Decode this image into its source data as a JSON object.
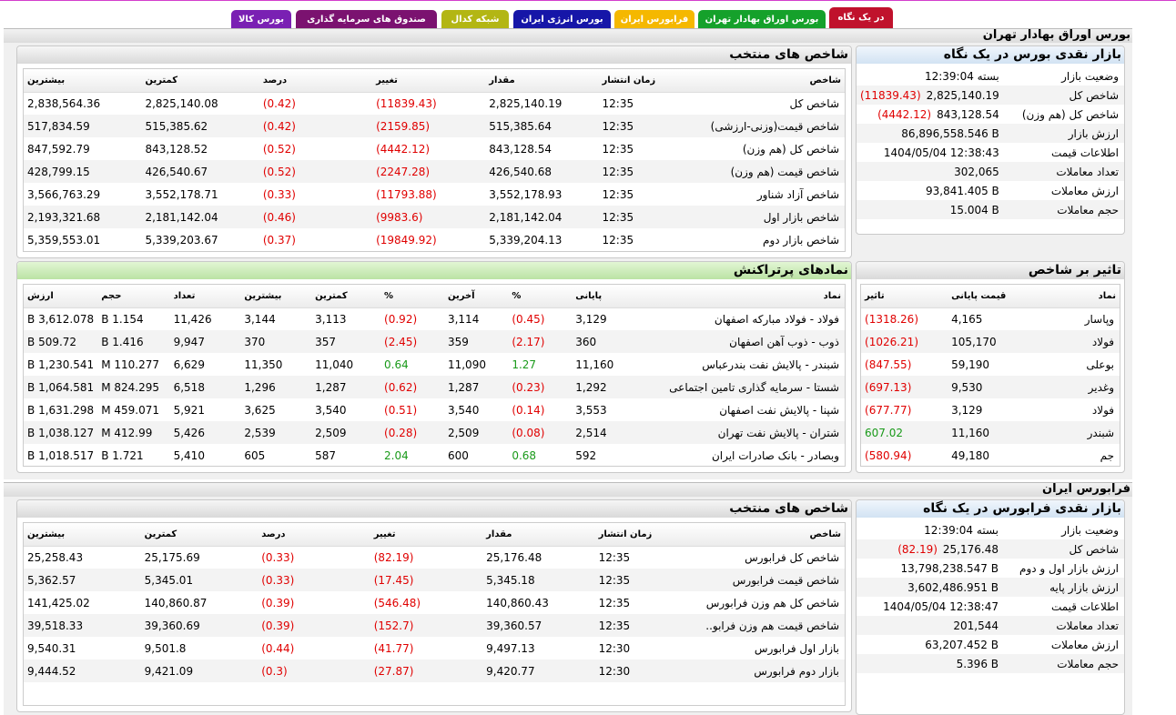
{
  "tabs": [
    {
      "label": "در یک نگاه",
      "color": "#c0122c",
      "active": true
    },
    {
      "label": "بورس اوراق بهادار تهران",
      "color": "#15a12b"
    },
    {
      "label": "فرابورس ایران",
      "color": "#f5b800"
    },
    {
      "label": "بورس انرژی ایران",
      "color": "#1616a8"
    },
    {
      "label": "شبکه کدال",
      "color": "#b3b614"
    },
    {
      "label": "صندوق های سرمایه گذاری",
      "color": "#7b1270"
    },
    {
      "label": "بورس کالا",
      "color": "#7a20b3"
    }
  ],
  "tse": {
    "title": "بورس اوراق بهادار تهران",
    "glance": {
      "title": "بازار نقدی بورس در یک نگاه",
      "rows": [
        {
          "label": "وضعیت بازار",
          "value": "بسته 12:39:04",
          "change": ""
        },
        {
          "label": "شاخص کل",
          "value": "2,825,140.19",
          "change": "(11839.43)"
        },
        {
          "label": "شاخص کل (هم وزن)",
          "value": "843,128.54",
          "change": "(4442.12)"
        },
        {
          "label": "ارزش بازار",
          "value": "86,896,558.546 B",
          "change": ""
        },
        {
          "label": "اطلاعات قیمت",
          "value": "1404/05/04 12:38:43",
          "change": ""
        },
        {
          "label": "تعداد معاملات",
          "value": "302,065",
          "change": ""
        },
        {
          "label": "ارزش معاملات",
          "value": "93,841.405 B",
          "change": ""
        },
        {
          "label": "حجم معاملات",
          "value": "15.004 B",
          "change": ""
        }
      ]
    },
    "indices": {
      "title": "شاخص های منتخب",
      "headers": [
        "شاخص",
        "زمان انتشار",
        "مقدار",
        "تغییر",
        "درصد",
        "کمترین",
        "بیشترین"
      ],
      "rows": [
        [
          "شاخص کل",
          "12:35",
          "2,825,140.19",
          "(11839.43)",
          "(0.42)",
          "2,825,140.08",
          "2,838,564.36"
        ],
        [
          "شاخص قیمت(وزنی-ارزشی)",
          "12:35",
          "515,385.64",
          "(2159.85)",
          "(0.42)",
          "515,385.62",
          "517,834.59"
        ],
        [
          "شاخص کل (هم وزن)",
          "12:35",
          "843,128.54",
          "(4442.12)",
          "(0.52)",
          "843,128.52",
          "847,592.79"
        ],
        [
          "شاخص قیمت (هم وزن)",
          "12:35",
          "426,540.68",
          "(2247.28)",
          "(0.52)",
          "426,540.67",
          "428,799.15"
        ],
        [
          "شاخص آزاد شناور",
          "12:35",
          "3,552,178.93",
          "(11793.88)",
          "(0.33)",
          "3,552,178.71",
          "3,566,763.29"
        ],
        [
          "شاخص بازار اول",
          "12:35",
          "2,181,142.04",
          "(9983.6)",
          "(0.46)",
          "2,181,142.04",
          "2,193,321.68"
        ],
        [
          "شاخص بازار دوم",
          "12:35",
          "5,339,204.13",
          "(19849.92)",
          "(0.37)",
          "5,339,203.67",
          "5,359,553.01"
        ]
      ]
    },
    "influence": {
      "title": "تاثیر بر شاخص",
      "headers": [
        "نماد",
        "قیمت پایانی",
        "تاثیر"
      ],
      "rows": [
        [
          "وپاسار",
          "4,165",
          "(1318.26)"
        ],
        [
          "فولاد",
          "105,170",
          "(1026.21)"
        ],
        [
          "بوعلی",
          "59,190",
          "(847.55)"
        ],
        [
          "وغدیر",
          "9,530",
          "(697.13)"
        ],
        [
          "فولاد",
          "3,129",
          "(677.77)"
        ],
        [
          "شبندر",
          "11,160",
          "607.02"
        ],
        [
          "جم",
          "49,180",
          "(580.94)"
        ]
      ]
    },
    "active": {
      "title": "نمادهای پرتراکنش",
      "headers": [
        "نماد",
        "پایانی",
        "%",
        "آخرین",
        "%",
        "کمترین",
        "بیشترین",
        "تعداد",
        "حجم",
        "ارزش"
      ],
      "rows": [
        [
          "فولاد - فولاد مبارکه اصفهان",
          "3,129",
          "(0.45)",
          "3,114",
          "(0.92)",
          "3,113",
          "3,144",
          "11,426",
          "1.154 B",
          "3,612.078 B"
        ],
        [
          "ذوب - ذوب آهن اصفهان",
          "360",
          "(2.17)",
          "359",
          "(2.45)",
          "357",
          "370",
          "9,947",
          "1.416 B",
          "509.72 B"
        ],
        [
          "شبندر - پالایش نفت بندرعباس",
          "11,160",
          "1.27",
          "11,090",
          "0.64",
          "11,040",
          "11,350",
          "6,629",
          "110.277 M",
          "1,230.541 B"
        ],
        [
          "شستا - سرمایه گذاری تامین اجتماعی",
          "1,292",
          "(0.23)",
          "1,287",
          "(0.62)",
          "1,287",
          "1,296",
          "6,518",
          "824.295 M",
          "1,064.581 B"
        ],
        [
          "شپنا - پالایش نفت اصفهان",
          "3,553",
          "(0.14)",
          "3,540",
          "(0.51)",
          "3,540",
          "3,625",
          "5,921",
          "459.071 M",
          "1,631.298 B"
        ],
        [
          "شتران - پالایش نفت تهران",
          "2,514",
          "(0.08)",
          "2,509",
          "(0.28)",
          "2,509",
          "2,539",
          "5,426",
          "412.99 M",
          "1,038.127 B"
        ],
        [
          "وبصادر - بانک صادرات ایران",
          "592",
          "0.68",
          "600",
          "2.04",
          "587",
          "605",
          "5,410",
          "1.721 B",
          "1,018.517 B"
        ]
      ]
    }
  },
  "ifb": {
    "title": "فرابورس ایران",
    "glance": {
      "title": "بازار نقدی فرابورس در یک نگاه",
      "rows": [
        {
          "label": "وضعیت بازار",
          "value": "بسته 12:39:04",
          "change": ""
        },
        {
          "label": "شاخص کل",
          "value": "25,176.48",
          "change": "(82.19)"
        },
        {
          "label": "ارزش بازار اول و دوم",
          "value": "13,798,238.547 B",
          "change": ""
        },
        {
          "label": "ارزش بازار پایه",
          "value": "3,602,486.951 B",
          "change": ""
        },
        {
          "label": "اطلاعات قیمت",
          "value": "1404/05/04 12:38:47",
          "change": ""
        },
        {
          "label": "تعداد معاملات",
          "value": "201,544",
          "change": ""
        },
        {
          "label": "ارزش معاملات",
          "value": "63,207.452 B",
          "change": ""
        },
        {
          "label": "حجم معاملات",
          "value": "5.396 B",
          "change": ""
        }
      ]
    },
    "indices": {
      "title": "شاخص های منتخب",
      "headers": [
        "شاخص",
        "زمان انتشار",
        "مقدار",
        "تغییر",
        "درصد",
        "کمترین",
        "بیشترین"
      ],
      "rows": [
        [
          "شاخص کل فرابورس",
          "12:35",
          "25,176.48",
          "(82.19)",
          "(0.33)",
          "25,175.69",
          "25,258.43"
        ],
        [
          "شاخص قیمت فرابورس",
          "12:35",
          "5,345.18",
          "(17.45)",
          "(0.33)",
          "5,345.01",
          "5,362.57"
        ],
        [
          "شاخص کل هم وزن فرابورس",
          "12:35",
          "140,860.43",
          "(546.48)",
          "(0.39)",
          "140,860.87",
          "141,425.02"
        ],
        [
          "شاخص قیمت هم وزن فرابو..",
          "12:35",
          "39,360.57",
          "(152.7)",
          "(0.39)",
          "39,360.69",
          "39,518.33"
        ],
        [
          "بازار اول فرابورس",
          "12:30",
          "9,497.13",
          "(41.77)",
          "(0.44)",
          "9,501.8",
          "9,540.31"
        ],
        [
          "بازار دوم فرابورس",
          "12:30",
          "9,420.77",
          "(27.87)",
          "(0.3)",
          "9,421.09",
          "9,444.52"
        ]
      ]
    }
  }
}
